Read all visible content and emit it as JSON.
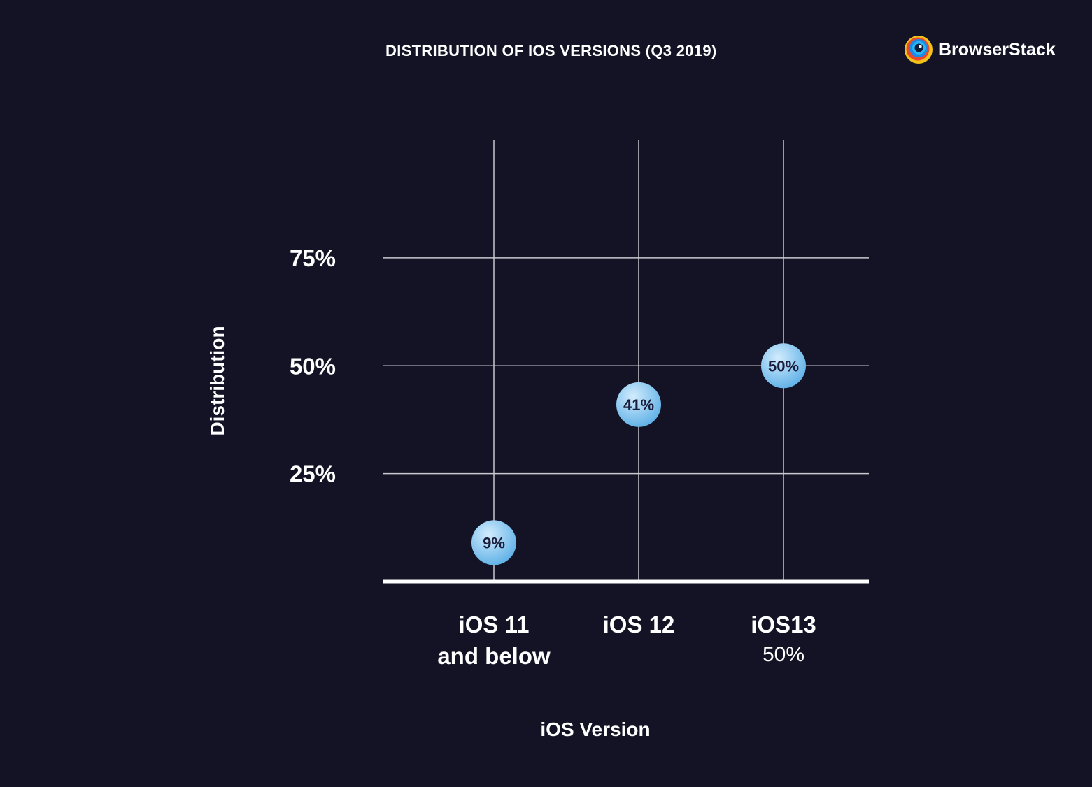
{
  "brand": {
    "name": "BrowserStack",
    "logo_colors": [
      "#f4c319",
      "#e8482b",
      "#1e88e5",
      "#29b6f6",
      "#7cb342"
    ]
  },
  "colors": {
    "background": "#131325",
    "grid": "#c8c8d0",
    "axis": "#ffffff",
    "marker_light": "#d2ecfd",
    "marker_dark": "#5aaee6",
    "marker_text": "#1b1b3a"
  },
  "chart_data": {
    "type": "scatter",
    "title": "DISTRIBUTION OF IOS VERSIONS (Q3 2019)",
    "xlabel": "iOS Version",
    "ylabel": "Distribution",
    "categories": [
      {
        "lines": [
          "iOS 11",
          "and below"
        ],
        "sub": ""
      },
      {
        "lines": [
          "iOS 12"
        ],
        "sub": ""
      },
      {
        "lines": [
          "iOS13"
        ],
        "sub": "50%"
      }
    ],
    "values": [
      9,
      41,
      50
    ],
    "point_labels": [
      "9%",
      "41%",
      "50%"
    ],
    "yticks": [
      25,
      50,
      75
    ],
    "ytick_labels": [
      "25%",
      "50%",
      "75%"
    ],
    "ylim": [
      0,
      100
    ],
    "grid": true,
    "legend": "none"
  }
}
